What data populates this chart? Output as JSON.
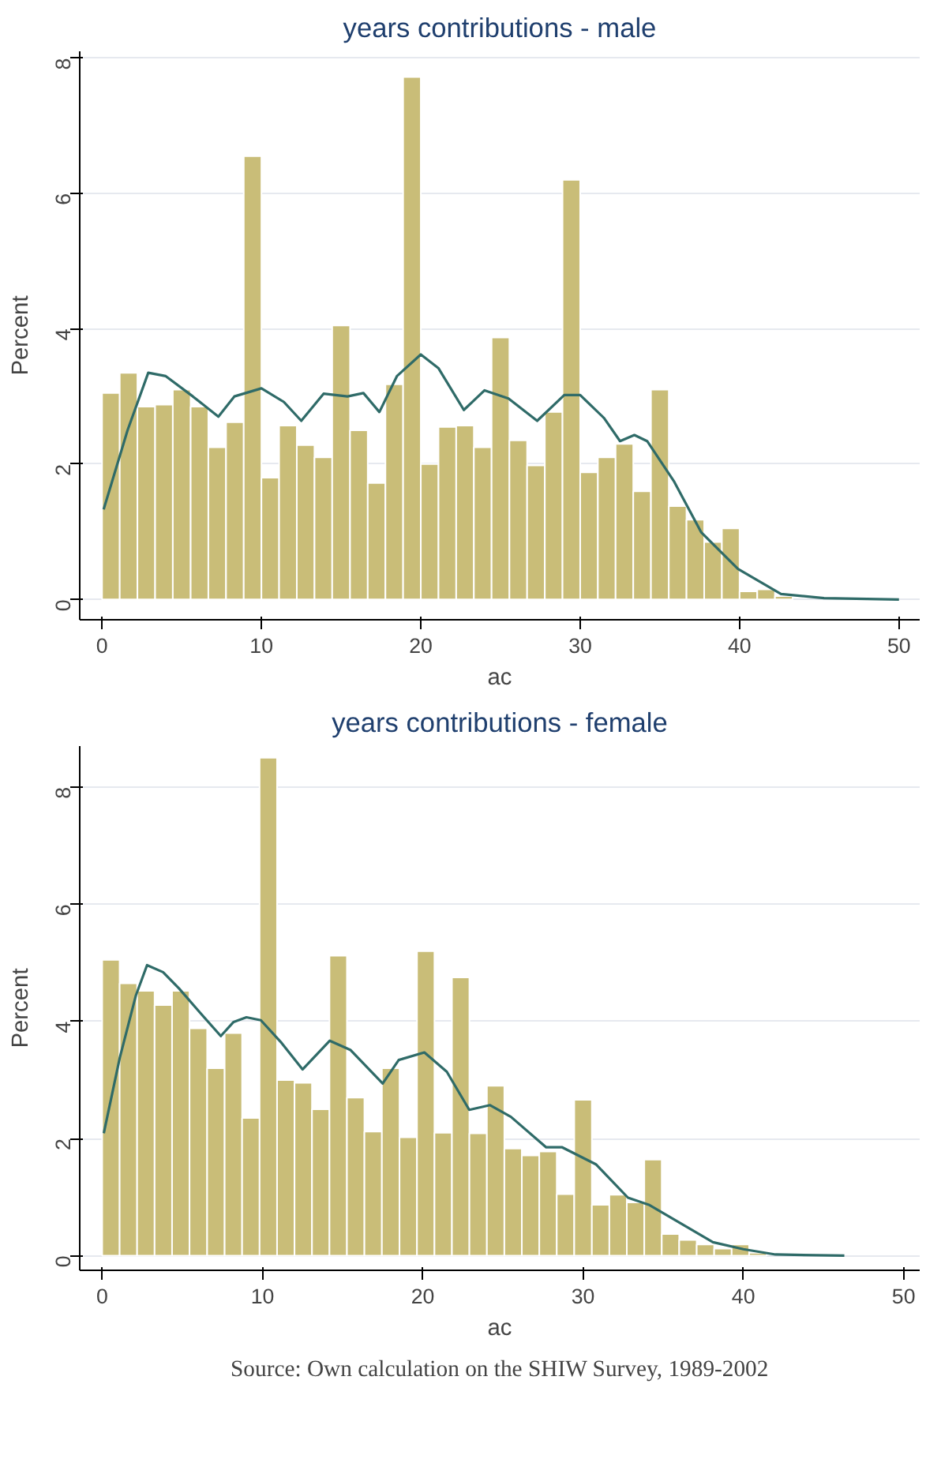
{
  "chart_data": [
    {
      "type": "histogram",
      "title": "years contributions - male",
      "xlabel": "ac",
      "ylabel": "Percent",
      "color": "#c9bd78",
      "bins": [
        0,
        1.11,
        2.22,
        3.33,
        4.44,
        5.56,
        6.67,
        7.78,
        8.89,
        10,
        11.11,
        12.22,
        13.33,
        14.44,
        15.56,
        16.67,
        17.78,
        18.89,
        20,
        21.11,
        22.22,
        23.33,
        24.44,
        25.56,
        26.67,
        27.78,
        28.89,
        30,
        31.11,
        32.22,
        33.33,
        34.44,
        35.56,
        36.67,
        37.78,
        38.89,
        40,
        41.11,
        42.22,
        43.33,
        44.44,
        45.56,
        46.67,
        47.78,
        48.89,
        50
      ],
      "values": [
        3.05,
        3.35,
        2.85,
        2.88,
        3.1,
        2.85,
        2.25,
        2.62,
        6.55,
        1.8,
        2.57,
        2.28,
        2.1,
        4.05,
        2.5,
        1.72,
        3.18,
        7.72,
        2.0,
        2.55,
        2.57,
        2.25,
        3.87,
        2.35,
        1.98,
        2.77,
        6.2,
        1.88,
        2.1,
        2.3,
        1.6,
        3.1,
        1.38,
        1.18,
        0.85,
        1.05,
        0.12,
        0.15,
        0.05,
        null,
        null,
        null,
        null,
        null,
        null
      ],
      "series": [
        {
          "type": "line",
          "color": "#2f6b68",
          "x": [
            0.1,
            1.6,
            2.9,
            4.0,
            5.7,
            7.3,
            8.3,
            10,
            11.4,
            12.5,
            13.9,
            15.4,
            16.4,
            17.4,
            18.5,
            20,
            21.1,
            22.7,
            24,
            25.5,
            27.3,
            29,
            30,
            31.5,
            32.5,
            33.4,
            34.2,
            35.9,
            37.6,
            39.9,
            42.6,
            45.3,
            50
          ],
          "values": [
            1.33,
            2.5,
            3.35,
            3.3,
            3.0,
            2.7,
            3.0,
            3.12,
            2.92,
            2.64,
            3.04,
            3.0,
            3.05,
            2.77,
            3.3,
            3.62,
            3.42,
            2.8,
            3.09,
            2.97,
            2.64,
            3.02,
            3.02,
            2.68,
            2.34,
            2.43,
            2.34,
            1.74,
            0.99,
            0.45,
            0.08,
            0.02,
            0.0
          ]
        }
      ],
      "xlim": [
        -1.4,
        51.3
      ],
      "ylim": [
        -0.3,
        8.1
      ],
      "xticks": [
        0,
        10,
        20,
        30,
        40,
        50
      ],
      "yticks": [
        0,
        2,
        4,
        6,
        8
      ],
      "grid": "y",
      "line_style": "solid"
    },
    {
      "type": "histogram",
      "title": "years contributions - female",
      "xlabel": "ac",
      "ylabel": "Percent",
      "color": "#c9bd78",
      "bins": [
        0,
        1.09,
        2.18,
        3.27,
        4.36,
        5.45,
        6.55,
        7.64,
        8.73,
        9.82,
        10.91,
        12,
        13.09,
        14.18,
        15.27,
        16.36,
        17.45,
        18.55,
        19.64,
        20.73,
        21.82,
        22.91,
        24,
        25.09,
        26.18,
        27.27,
        28.36,
        29.45,
        30.55,
        31.64,
        32.73,
        33.82,
        34.91,
        36,
        37.09,
        38.18,
        39.27,
        40.36,
        41.45,
        42.55,
        43.64,
        44.73,
        45.82,
        46.91,
        48
      ],
      "values": [
        5.05,
        4.65,
        4.52,
        4.28,
        4.52,
        3.88,
        3.2,
        3.8,
        2.35,
        8.5,
        3.0,
        2.95,
        2.5,
        5.12,
        2.7,
        2.12,
        3.2,
        2.02,
        5.2,
        2.1,
        4.75,
        2.09,
        2.9,
        1.83,
        1.71,
        1.78,
        1.05,
        2.66,
        0.87,
        1.04,
        0.91,
        1.64,
        0.37,
        0.27,
        0.19,
        0.12,
        0.19,
        0.05,
        null,
        null,
        null,
        null,
        null,
        null
      ],
      "series": [
        {
          "type": "line",
          "color": "#2f6b68",
          "x": [
            0.1,
            1.1,
            2.1,
            2.8,
            3.8,
            4.8,
            6.1,
            7.4,
            8.2,
            9.0,
            9.9,
            11.2,
            12.5,
            14.2,
            15.5,
            17.5,
            18.5,
            20.1,
            21.5,
            22.9,
            24.2,
            25.5,
            27.7,
            28.7,
            30.8,
            32.8,
            34.1,
            36.1,
            38.1,
            40.0,
            42.0,
            46.3
          ],
          "values": [
            2.09,
            3.38,
            4.44,
            4.96,
            4.84,
            4.56,
            4.15,
            3.75,
            3.99,
            4.07,
            4.02,
            3.63,
            3.18,
            3.67,
            3.51,
            2.94,
            3.34,
            3.47,
            3.14,
            2.49,
            2.57,
            2.37,
            1.85,
            1.85,
            1.56,
            0.99,
            0.87,
            0.55,
            0.23,
            0.11,
            0.02,
            0.0
          ]
        }
      ],
      "xlim": [
        -1.4,
        51
      ],
      "ylim": [
        -0.25,
        8.7
      ],
      "xticks": [
        0,
        10,
        20,
        30,
        40,
        50
      ],
      "yticks": [
        0,
        2,
        4,
        6,
        8
      ],
      "grid": "y",
      "line_style": "solid",
      "annotations": [
        "Source: Own calculation on the SHIW Survey, 1989-2002"
      ]
    }
  ]
}
